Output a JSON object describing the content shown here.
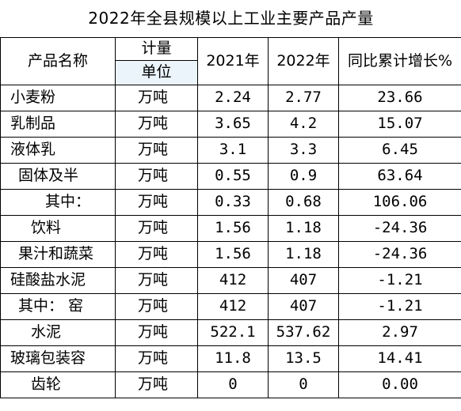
{
  "title": "2022年全县规模以上工业主要产品产量",
  "header": {
    "name": "产品名称",
    "unit_top": "计量",
    "unit_bottom": "单位",
    "year1": "2021年",
    "year2": "2022年",
    "growth": "同比累计增长%"
  },
  "rows": [
    {
      "name": "小麦粉",
      "unit": "万吨",
      "y2021": "2.24",
      "y2022": "2.77",
      "growth": "23.66"
    },
    {
      "name": "乳制品",
      "unit": "万吨",
      "y2021": "3.65",
      "y2022": "4.2",
      "growth": "15.07"
    },
    {
      "name": "液体乳",
      "unit": "万吨",
      "y2021": "3.1",
      "y2022": "3.3",
      "growth": "6.45"
    },
    {
      "name": "固体及半",
      "unit": "万吨",
      "y2021": "0.55",
      "y2022": "0.9",
      "growth": "63.64"
    },
    {
      "name": "其中：",
      "unit": "万吨",
      "y2021": "0.33",
      "y2022": "0.68",
      "growth": "106.06"
    },
    {
      "name": "饮料",
      "unit": "万吨",
      "y2021": "1.56",
      "y2022": "1.18",
      "growth": "-24.36"
    },
    {
      "name": "果汁和蔬菜",
      "unit": "万吨",
      "y2021": "1.56",
      "y2022": "1.18",
      "growth": "-24.36"
    },
    {
      "name": "硅酸盐水泥",
      "unit": "万吨",
      "y2021": "412",
      "y2022": "407",
      "growth": "-1.21"
    },
    {
      "name": "其中：  窑",
      "unit": "万吨",
      "y2021": "412",
      "y2022": "407",
      "growth": "-1.21"
    },
    {
      "name": "水泥",
      "unit": "万吨",
      "y2021": "522.1",
      "y2022": "537.62",
      "growth": "2.97"
    },
    {
      "name": "玻璃包装容",
      "unit": "万吨",
      "y2021": "11.8",
      "y2022": "13.5",
      "growth": "14.41"
    },
    {
      "name": "齿轮",
      "unit": "万吨",
      "y2021": "0",
      "y2022": "0",
      "growth": "0.00"
    }
  ]
}
